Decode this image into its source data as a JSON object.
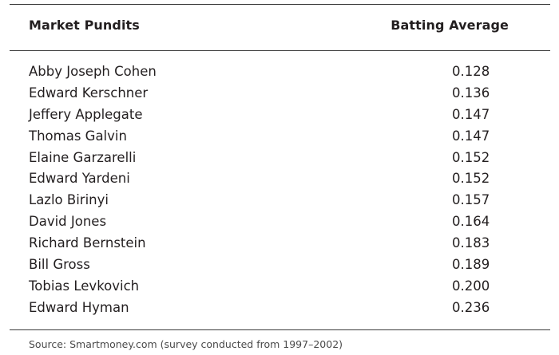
{
  "table": {
    "headers": {
      "name": "Market Pundits",
      "value": "Batting Average"
    },
    "rows": [
      {
        "name": "Abby Joseph Cohen",
        "value": "0.128"
      },
      {
        "name": "Edward Kerschner",
        "value": "0.136"
      },
      {
        "name": "Jeffery Applegate",
        "value": "0.147"
      },
      {
        "name": "Thomas Galvin",
        "value": "0.147"
      },
      {
        "name": "Elaine Garzarelli",
        "value": "0.152"
      },
      {
        "name": "Edward Yardeni",
        "value": "0.152"
      },
      {
        "name": "Lazlo Birinyi",
        "value": "0.157"
      },
      {
        "name": "David Jones",
        "value": "0.164"
      },
      {
        "name": "Richard Bernstein",
        "value": "0.183"
      },
      {
        "name": "Bill Gross",
        "value": "0.189"
      },
      {
        "name": "Tobias Levkovich",
        "value": "0.200"
      },
      {
        "name": "Edward Hyman",
        "value": "0.236"
      }
    ]
  },
  "footer": {
    "source": "Source: Smartmoney.com (survey conducted from 1997–2002)"
  }
}
